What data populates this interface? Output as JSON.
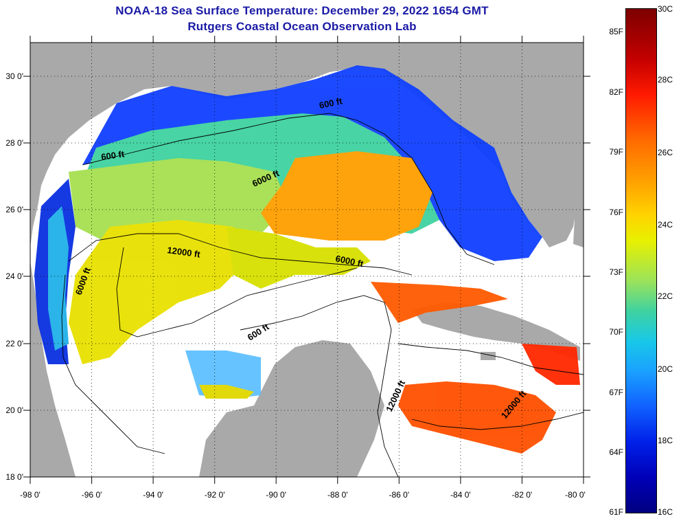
{
  "title": {
    "line1": "NOAA-18 Sea Surface Temperature:  December 29, 2022 1654 GMT",
    "line2": "Rutgers Coastal Ocean Observation Lab"
  },
  "map": {
    "lon_labels": [
      "-98 0'",
      "-96 0'",
      "-94 0'",
      "-92 0'",
      "-90 0'",
      "-88 0'",
      "-86 0'",
      "-84 0'",
      "-82 0'",
      "-80 0'"
    ],
    "lat_labels": [
      "30 0'",
      "28 0'",
      "26 0'",
      "24 0'",
      "22 0'",
      "20 0'",
      "18 0'"
    ],
    "lon_range": [
      -98,
      -80
    ],
    "lat_range": [
      18,
      31
    ],
    "contour_labels": [
      "600 ft",
      "600 ft",
      "6000 ft",
      "12000 ft",
      "6000 ft",
      "6000 ft",
      "600 ft",
      "12000 ft",
      "12000 ft"
    ],
    "colors": {
      "land": "#a9a9a9",
      "no_data": "#ffffff",
      "grid": "#000000"
    }
  },
  "colorbar": {
    "fahrenheit": [
      "85F",
      "82F",
      "79F",
      "76F",
      "73F",
      "70F",
      "67F",
      "64F",
      "61F"
    ],
    "celsius": [
      "30C",
      "28C",
      "26C",
      "24C",
      "22C",
      "20C",
      "18C",
      "16C"
    ]
  }
}
